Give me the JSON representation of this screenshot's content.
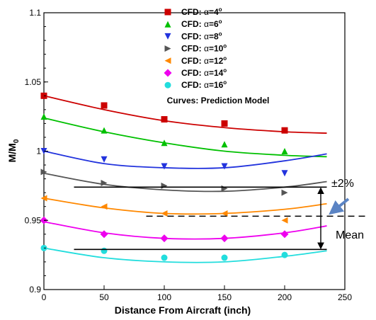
{
  "chart_data": {
    "type": "scatter",
    "xlabel": "Distance From Aircraft (inch)",
    "ylabel": "M/M",
    "ylabel_sub": "0",
    "xlim": [
      0,
      250
    ],
    "ylim": [
      0.9,
      1.1
    ],
    "xticks": [
      "0",
      "50",
      "100",
      "150",
      "200",
      "250"
    ],
    "yticks": [
      "0.9",
      "0.95",
      "1",
      "1.05",
      "1.1"
    ],
    "grid": false,
    "legend_position": "top-center",
    "legend_prefix": "CFD: ",
    "legend_alpha": "α",
    "legend_degree": "o",
    "legend_footer": "Curves: Prediction Model",
    "series": [
      {
        "name": "CFD: α=4°",
        "alpha_value": "=4",
        "marker": "square",
        "color": "#cc0000",
        "x": [
          0,
          50,
          100,
          150,
          200
        ],
        "y": [
          1.04,
          1.033,
          1.023,
          1.02,
          1.015
        ],
        "curve": [
          1.04,
          1.03,
          1.022,
          1.017,
          1.014
        ]
      },
      {
        "name": "CFD: α=6°",
        "alpha_value": "=6",
        "marker": "triangle-up",
        "color": "#00c000",
        "x": [
          0,
          50,
          100,
          150,
          200
        ],
        "y": [
          1.025,
          1.015,
          1.006,
          1.005,
          1.0
        ],
        "curve": [
          1.024,
          1.014,
          1.006,
          1.0,
          0.997
        ]
      },
      {
        "name": "CFD: α=8°",
        "alpha_value": "=8",
        "marker": "triangle-down",
        "color": "#2233dd",
        "x": [
          0,
          50,
          100,
          150,
          200
        ],
        "y": [
          1.0,
          0.994,
          0.989,
          0.989,
          0.984
        ],
        "curve": [
          1.0,
          0.991,
          0.988,
          0.988,
          0.993
        ]
      },
      {
        "name": "CFD: α=10°",
        "alpha_value": "=10",
        "marker": "triangle-right",
        "color": "#555555",
        "x": [
          0,
          50,
          100,
          150,
          200
        ],
        "y": [
          0.985,
          0.977,
          0.975,
          0.973,
          0.97
        ],
        "curve": [
          0.984,
          0.976,
          0.972,
          0.971,
          0.974
        ]
      },
      {
        "name": "CFD: α=12°",
        "alpha_value": "=12",
        "marker": "triangle-left",
        "color": "#ff8800",
        "x": [
          0,
          50,
          100,
          150,
          200
        ],
        "y": [
          0.966,
          0.96,
          0.955,
          0.955,
          0.95
        ],
        "curve": [
          0.966,
          0.959,
          0.955,
          0.955,
          0.958
        ]
      },
      {
        "name": "CFD: α=14°",
        "alpha_value": "=14",
        "marker": "diamond",
        "color": "#ee00ee",
        "x": [
          0,
          50,
          100,
          150,
          200
        ],
        "y": [
          0.95,
          0.94,
          0.937,
          0.937,
          0.94
        ],
        "curve": [
          0.949,
          0.941,
          0.937,
          0.937,
          0.941
        ]
      },
      {
        "name": "CFD: α=16°",
        "alpha_value": "=16",
        "marker": "circle",
        "color": "#22dddd",
        "x": [
          0,
          50,
          100,
          150,
          200
        ],
        "y": [
          0.93,
          0.928,
          0.923,
          0.923,
          0.925
        ],
        "curve": [
          0.93,
          0.923,
          0.92,
          0.92,
          0.924
        ]
      }
    ],
    "curve_x": [
      0,
      50,
      100,
      150,
      200,
      235
    ],
    "curve_end": [
      1.013,
      0.996,
      0.998,
      0.978,
      0.962,
      0.946,
      0.928
    ],
    "reference_lines": {
      "upper_y": 0.974,
      "lower_y": 0.929,
      "x_start": 25,
      "x_end": 235,
      "band_arrow_x": 230,
      "mean_y": 0.953,
      "mean_x_start": 85
    },
    "annotations": {
      "band_label": "±2%",
      "mean_label": "Mean"
    }
  }
}
